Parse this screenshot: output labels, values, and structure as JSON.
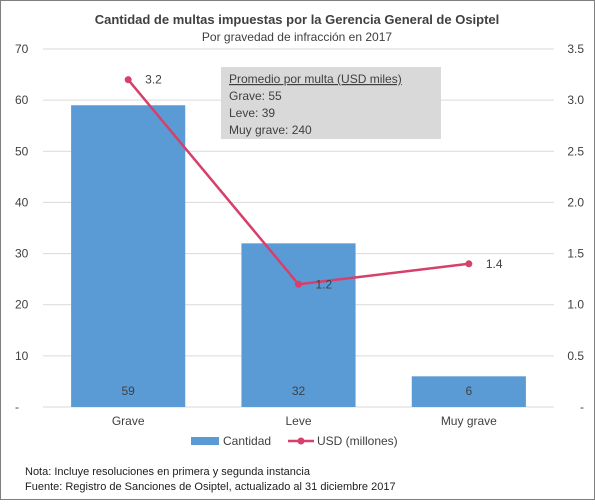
{
  "chart_data": {
    "type": "bar",
    "title": "Cantidad de multas impuestas por la Gerencia General de Osiptel",
    "subtitle": "Por gravedad de infracción en 2017",
    "categories": [
      "Grave",
      "Leve",
      "Muy grave"
    ],
    "series": [
      {
        "name": "Cantidad",
        "type": "bar",
        "axis": "left",
        "values": [
          59,
          32,
          6
        ],
        "color": "#5b9bd5"
      },
      {
        "name": "USD (millones)",
        "type": "line",
        "axis": "right",
        "values": [
          3.2,
          1.2,
          1.4
        ],
        "value_labels": [
          "3.2",
          "1.2",
          "1.4"
        ],
        "color": "#d6406a"
      }
    ],
    "y_left": {
      "min": 0,
      "max": 70,
      "ticks": [
        0,
        10,
        20,
        30,
        40,
        50,
        60,
        70
      ],
      "tick_labels": [
        "-",
        "10",
        "20",
        "30",
        "40",
        "50",
        "60",
        "70"
      ]
    },
    "y_right": {
      "min": 0,
      "max": 3.5,
      "ticks": [
        0,
        0.5,
        1,
        1.5,
        2,
        2.5,
        3,
        3.5
      ],
      "tick_labels": [
        "-",
        "0.5",
        "1.0",
        "1.5",
        "2.0",
        "2.5",
        "3.0",
        "3.5"
      ]
    },
    "grid": true,
    "legend_position": "bottom"
  },
  "info_box": {
    "title": "Promedio por multa (USD miles)",
    "lines": [
      "Grave: 55",
      "Leve: 39",
      "Muy grave: 240"
    ]
  },
  "footnotes": {
    "note": "Nota: Incluye resoluciones en primera y segunda instancia",
    "source": "Fuente: Registro de Sanciones de Osiptel, actualizado al 31 diciembre 2017"
  },
  "colors": {
    "gridline": "#d9d9d9",
    "text": "#404040",
    "box_fill": "#d9d9d9"
  }
}
